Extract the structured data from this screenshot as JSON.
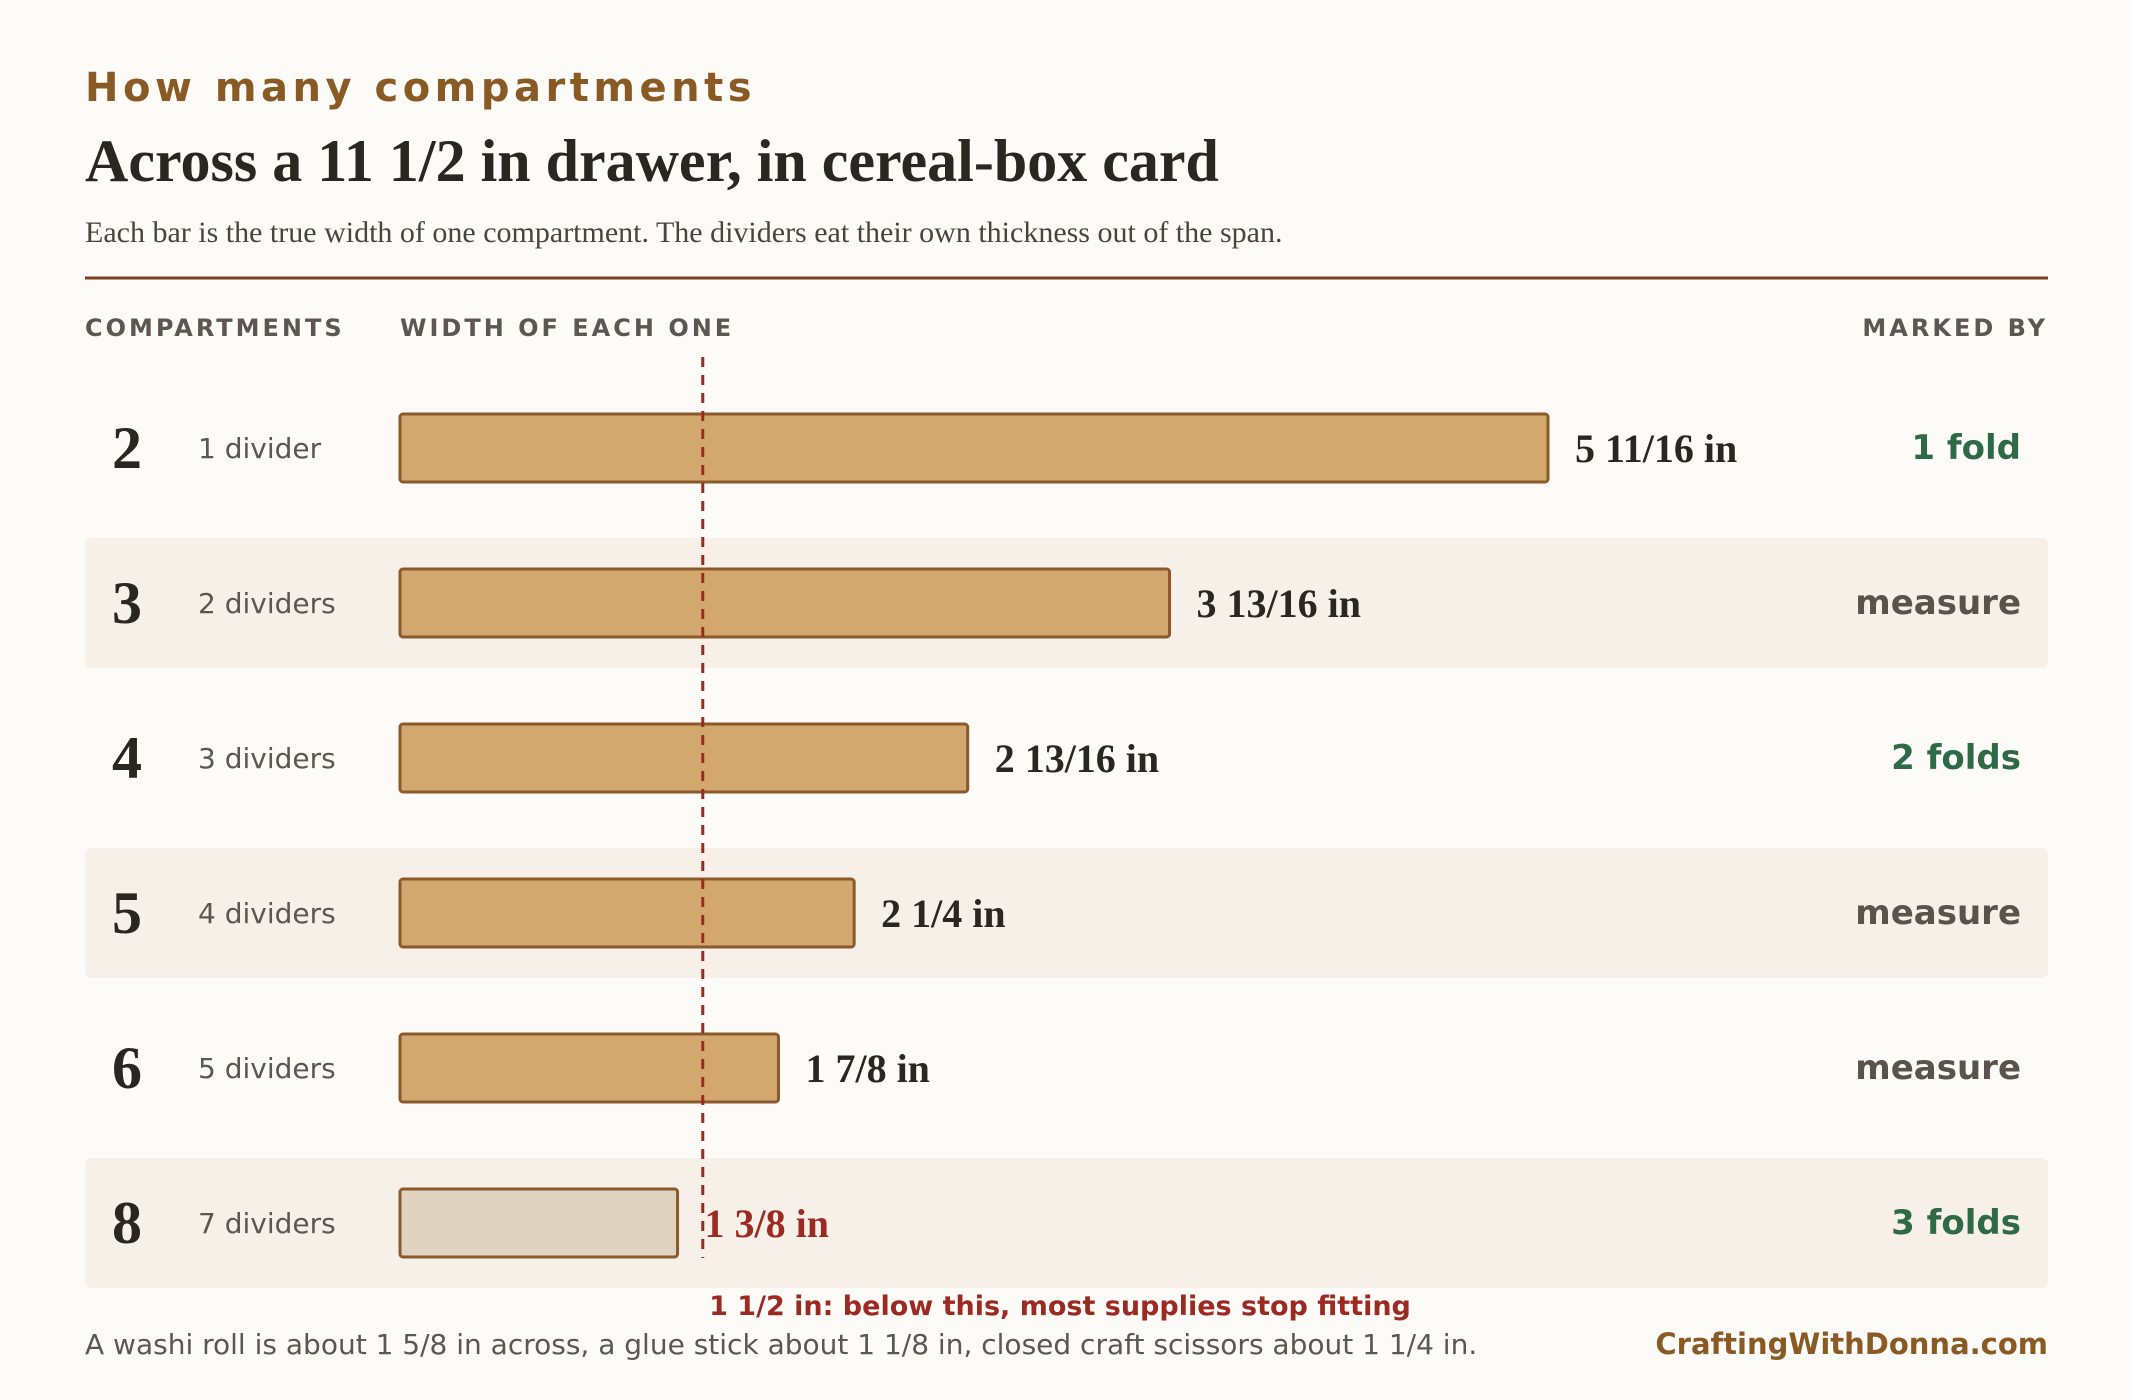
{
  "header": {
    "kicker": "How many compartments",
    "title": "Across a 11 1/2 in drawer, in cereal-box card",
    "subtitle": "Each bar is the true width of one compartment. The dividers eat their own thickness out of the span."
  },
  "columns": {
    "compartments": "COMPARTMENTS",
    "width": "WIDTH OF EACH ONE",
    "marked": "MARKED BY"
  },
  "colors": {
    "accent": "#8a5a24",
    "rule": "#7a4220",
    "bar_fill": "#d3a86e",
    "bar_stroke": "#8a5a2c",
    "bar_fill_below": "#e0d3c0",
    "band": "#f6f0e8",
    "warning": "#9c2a22",
    "fold_green": "#2e6a45",
    "measure_gray": "#5a534c",
    "text_dark": "#2a2620"
  },
  "chart_data": {
    "type": "bar",
    "orientation": "horizontal",
    "categories": [
      "2",
      "3",
      "4",
      "5",
      "6",
      "8"
    ],
    "values": [
      5.6875,
      3.8125,
      2.8125,
      2.25,
      1.875,
      1.375
    ],
    "value_labels": [
      "5 11/16 in",
      "3 13/16 in",
      "2 13/16 in",
      "2 1/4 in",
      "1 7/8 in",
      "1 3/8 in"
    ],
    "divider_labels": [
      "1 divider",
      "2 dividers",
      "3 dividers",
      "4 dividers",
      "5 dividers",
      "7 dividers"
    ],
    "marked_by": [
      {
        "label": "1 fold",
        "kind": "fold"
      },
      {
        "label": "measure",
        "kind": "measure"
      },
      {
        "label": "2 folds",
        "kind": "fold"
      },
      {
        "label": "measure",
        "kind": "measure"
      },
      {
        "label": "measure",
        "kind": "measure"
      },
      {
        "label": "3 folds",
        "kind": "fold"
      }
    ],
    "unit": "in",
    "threshold": {
      "value": 1.5,
      "label": "1 1/2 in: below this, most supplies stop fitting"
    },
    "xlim": [
      0,
      5.6875
    ],
    "grid": false
  },
  "footer": {
    "note": "A washi roll is about 1 5/8 in across, a glue stick about 1 1/8 in, closed craft scissors about 1 1/4 in.",
    "brand": "CraftingWithDonna.com"
  }
}
